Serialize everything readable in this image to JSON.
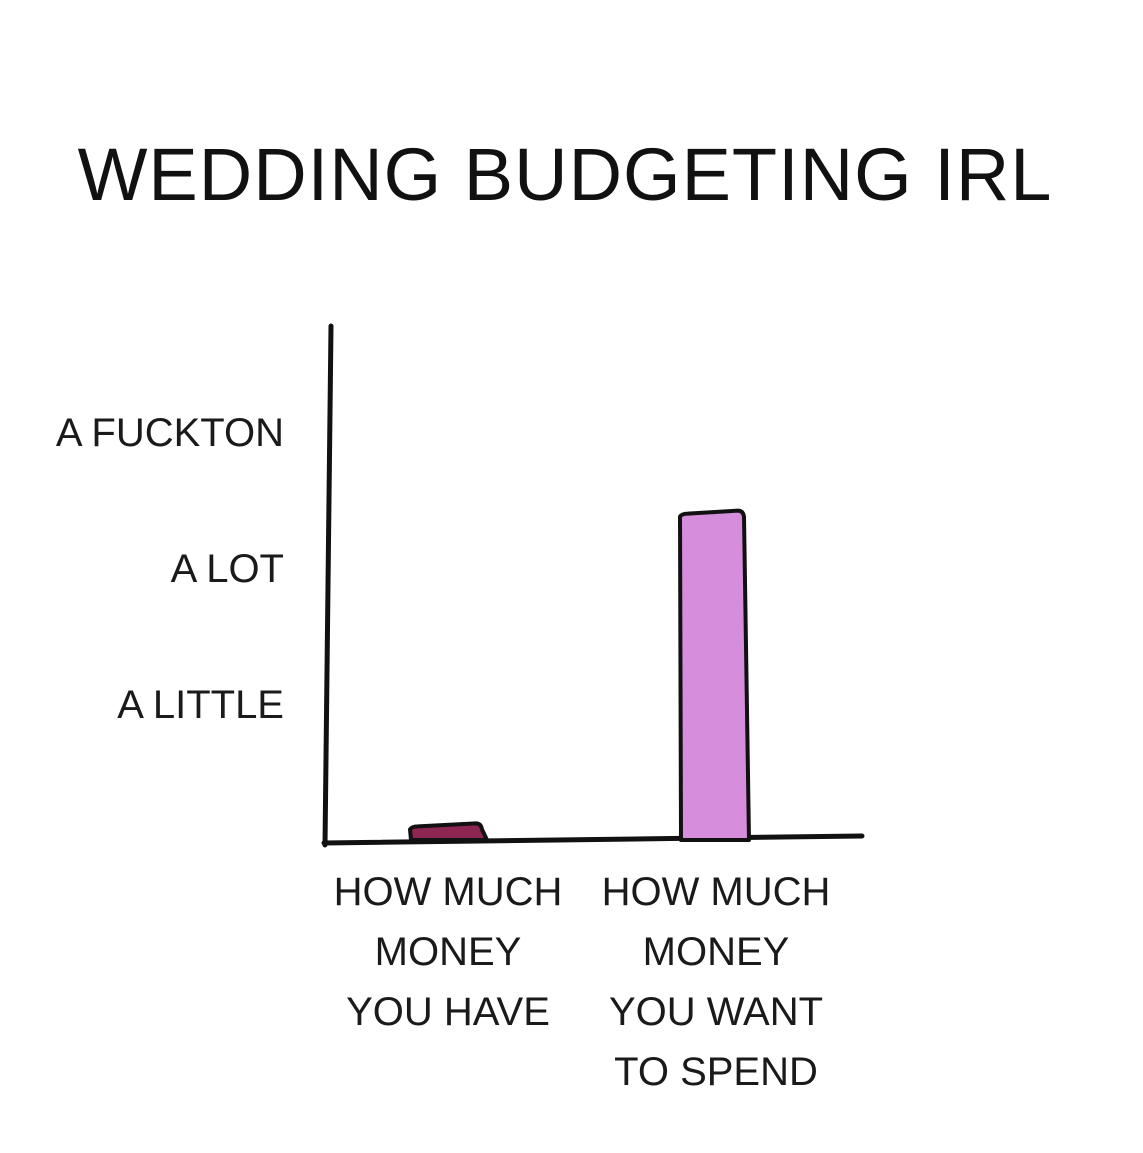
{
  "chart_data": {
    "type": "bar",
    "title": "WEDDING BUDGETING IRL",
    "xlabel": "",
    "ylabel": "",
    "yticks": [
      {
        "value": 1,
        "label": "A LITTLE"
      },
      {
        "value": 2,
        "label": "A LOT"
      },
      {
        "value": 3,
        "label": "A FUCKTON"
      }
    ],
    "ylim": [
      0,
      3.4
    ],
    "categories": [
      [
        "HOW MUCH",
        "MONEY",
        "YOU HAVE"
      ],
      [
        "HOW MUCH",
        "MONEY",
        "YOU WANT",
        "TO SPEND"
      ]
    ],
    "values": [
      0.1,
      2.4
    ],
    "colors": [
      "#8e2652",
      "#d58ddc"
    ],
    "grid": false
  }
}
